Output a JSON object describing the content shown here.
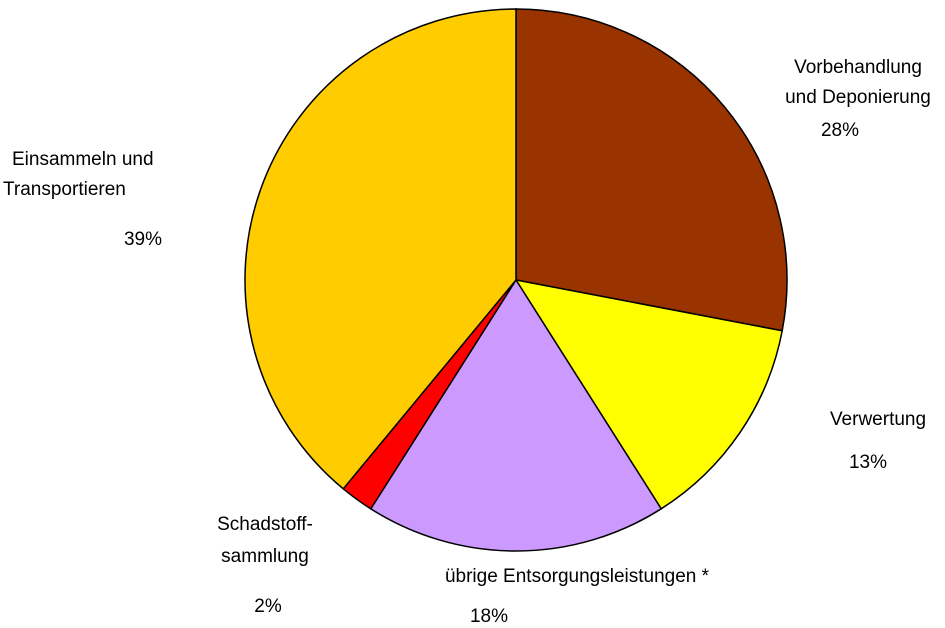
{
  "chart_data": {
    "type": "pie",
    "categories": [
      [
        "Vorbehandlung",
        "und Deponierung"
      ],
      [
        "Verwertung"
      ],
      [
        "übrige Entsorgungsleistungen *"
      ],
      [
        "Schadstoff-",
        "sammlung"
      ],
      [
        "Einsammeln und",
        "Transportieren"
      ]
    ],
    "values": [
      28,
      13,
      18,
      2,
      39
    ],
    "value_labels": [
      "28%",
      "13%",
      "18%",
      "2%",
      "39%"
    ],
    "colors": [
      "#993300",
      "#ffff00",
      "#cc99ff",
      "#ff0000",
      "#ffcc00"
    ]
  }
}
